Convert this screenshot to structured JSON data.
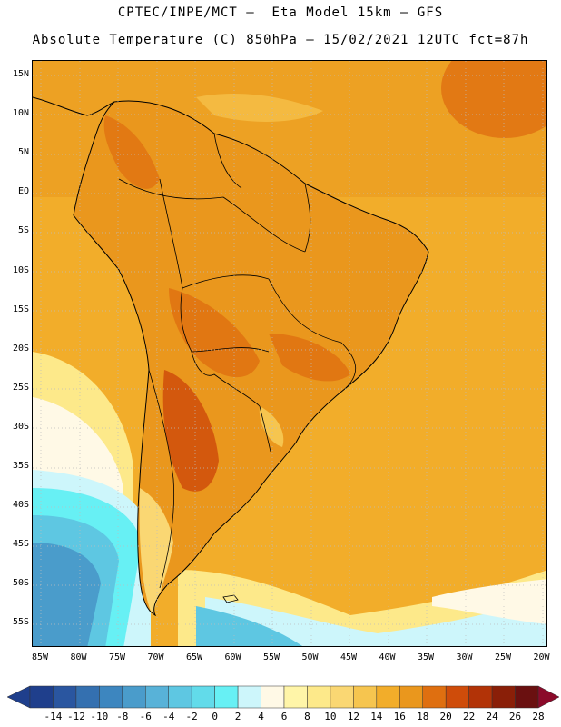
{
  "header": {
    "line1": "CPTEC/INPE/MCT –  Eta Model 15km – GFS",
    "line2": "Absolute Temperature (C) 850hPa – 15/02/2021 12UTC fct=87h"
  },
  "axes": {
    "lat_labels": [
      "15N",
      "10N",
      "5N",
      "EQ",
      "5S",
      "10S",
      "15S",
      "20S",
      "25S",
      "30S",
      "35S",
      "40S",
      "45S",
      "50S",
      "55S"
    ],
    "lon_labels": [
      "85W",
      "80W",
      "75W",
      "70W",
      "65W",
      "60W",
      "55W",
      "50W",
      "45W",
      "40W",
      "35W",
      "30W",
      "25W",
      "20W"
    ]
  },
  "colorbar": {
    "labels": [
      "-14",
      "-12",
      "-10",
      "-8",
      "-6",
      "-4",
      "-2",
      "0",
      "2",
      "4",
      "6",
      "8",
      "10",
      "12",
      "14",
      "16",
      "18",
      "20",
      "22",
      "24",
      "26",
      "28"
    ],
    "colors": [
      "#1f3f8c",
      "#2a56a0",
      "#3470b0",
      "#3d86bf",
      "#4a9ccb",
      "#58b2d8",
      "#5ec7e2",
      "#62dbea",
      "#67f0f4",
      "#cdf6fb",
      "#fff9e6",
      "#fff5a8",
      "#fde98a",
      "#fad773",
      "#f6c54f",
      "#f2ad2a",
      "#ea971d",
      "#df6f10",
      "#cf4c0a",
      "#b23307",
      "#8a1f08",
      "#6a1010"
    ]
  },
  "colors": {
    "ocean_warm": "#f2ad2a",
    "land_hot": "#df6f10",
    "cold_south": "#5ec7e2"
  }
}
